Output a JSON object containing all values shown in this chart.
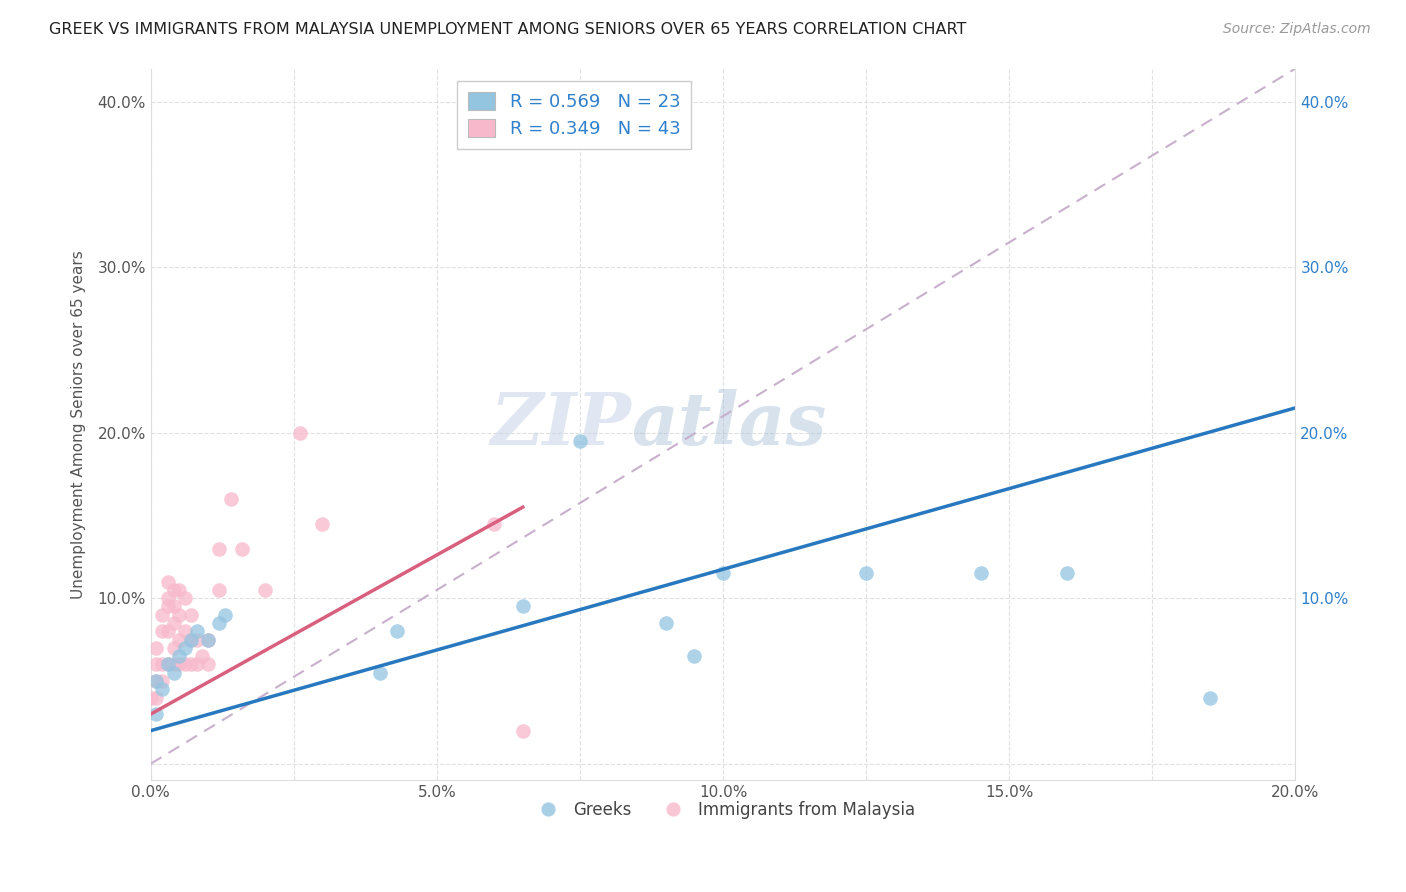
{
  "title": "GREEK VS IMMIGRANTS FROM MALAYSIA UNEMPLOYMENT AMONG SENIORS OVER 65 YEARS CORRELATION CHART",
  "source": "Source: ZipAtlas.com",
  "ylabel": "Unemployment Among Seniors over 65 years",
  "xlim": [
    0.0,
    0.2
  ],
  "ylim": [
    -0.01,
    0.42
  ],
  "xtick_positions": [
    0.0,
    0.025,
    0.05,
    0.075,
    0.1,
    0.125,
    0.15,
    0.175,
    0.2
  ],
  "xtick_labels": [
    "0.0%",
    "",
    "5.0%",
    "",
    "10.0%",
    "",
    "15.0%",
    "",
    "20.0%"
  ],
  "ytick_positions": [
    0.0,
    0.1,
    0.2,
    0.3,
    0.4
  ],
  "ytick_labels_left": [
    "",
    "10.0%",
    "20.0%",
    "30.0%",
    "40.0%"
  ],
  "ytick_labels_right": [
    "",
    "10.0%",
    "20.0%",
    "30.0%",
    "40.0%"
  ],
  "blue_R": 0.569,
  "blue_N": 23,
  "pink_R": 0.349,
  "pink_N": 43,
  "blue_color": "#93c4e0",
  "pink_color": "#f7b8cb",
  "blue_line_color": "#2878c0",
  "pink_line_color": "#d95f7f",
  "dashed_line_color": "#c8b0cc",
  "watermark_zip": "ZIP",
  "watermark_atlas": "atlas",
  "legend_label_blue": "Greeks",
  "legend_label_pink": "Immigrants from Malaysia",
  "blue_line_x0": 0.0,
  "blue_line_y0": 0.02,
  "blue_line_x1": 0.2,
  "blue_line_y1": 0.215,
  "pink_line_x0": 0.0,
  "pink_line_y0": 0.03,
  "pink_line_x1": 0.065,
  "pink_line_y1": 0.155,
  "blue_x": [
    0.001,
    0.001,
    0.002,
    0.003,
    0.004,
    0.005,
    0.006,
    0.007,
    0.008,
    0.01,
    0.012,
    0.013,
    0.04,
    0.043,
    0.065,
    0.075,
    0.09,
    0.095,
    0.1,
    0.125,
    0.145,
    0.16,
    0.185
  ],
  "blue_y": [
    0.03,
    0.05,
    0.045,
    0.06,
    0.055,
    0.065,
    0.07,
    0.075,
    0.08,
    0.075,
    0.085,
    0.09,
    0.055,
    0.08,
    0.095,
    0.195,
    0.085,
    0.065,
    0.115,
    0.115,
    0.115,
    0.115,
    0.04
  ],
  "pink_x": [
    0.0,
    0.001,
    0.001,
    0.001,
    0.001,
    0.002,
    0.002,
    0.002,
    0.002,
    0.003,
    0.003,
    0.003,
    0.003,
    0.003,
    0.004,
    0.004,
    0.004,
    0.004,
    0.004,
    0.005,
    0.005,
    0.005,
    0.005,
    0.006,
    0.006,
    0.006,
    0.007,
    0.007,
    0.007,
    0.008,
    0.008,
    0.009,
    0.01,
    0.01,
    0.012,
    0.012,
    0.014,
    0.016,
    0.02,
    0.026,
    0.03,
    0.06,
    0.065
  ],
  "pink_y": [
    0.04,
    0.04,
    0.05,
    0.06,
    0.07,
    0.05,
    0.06,
    0.08,
    0.09,
    0.06,
    0.08,
    0.095,
    0.1,
    0.11,
    0.06,
    0.07,
    0.085,
    0.095,
    0.105,
    0.06,
    0.075,
    0.09,
    0.105,
    0.06,
    0.08,
    0.1,
    0.06,
    0.075,
    0.09,
    0.06,
    0.075,
    0.065,
    0.06,
    0.075,
    0.105,
    0.13,
    0.16,
    0.13,
    0.105,
    0.2,
    0.145,
    0.145,
    0.02
  ]
}
